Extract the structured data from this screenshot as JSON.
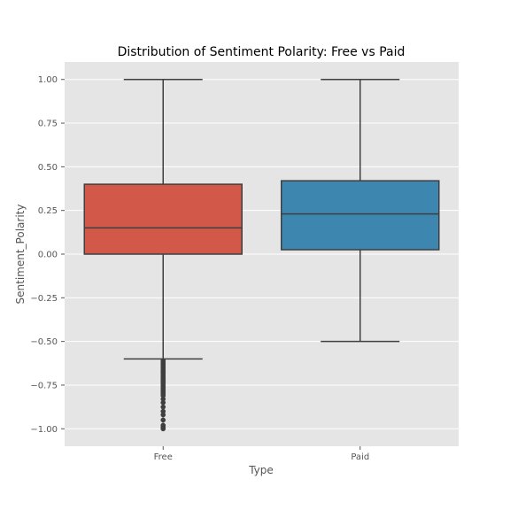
{
  "chart_data": {
    "type": "box",
    "title": "Distribution of Sentiment Polarity: Free vs Paid",
    "xlabel": "Type",
    "ylabel": "Sentiment_Polarity",
    "ylim": [
      -1.1,
      1.1
    ],
    "yticks": [
      1.0,
      0.75,
      0.5,
      0.25,
      0.0,
      -0.25,
      -0.5,
      -0.75,
      -1.0
    ],
    "ytick_labels": [
      "1.00",
      "0.75",
      "0.50",
      "0.25",
      "0.00",
      "−0.25",
      "−0.50",
      "−0.75",
      "−1.00"
    ],
    "categories": [
      "Free",
      "Paid"
    ],
    "grid": true,
    "boxes": [
      {
        "category": "Free",
        "color": "#D2584A",
        "whisker_low": -0.6,
        "q1": 0.0,
        "median": 0.15,
        "q3": 0.4,
        "whisker_high": 1.0,
        "outliers": [
          -0.61,
          -0.62,
          -0.625,
          -0.63,
          -0.64,
          -0.65,
          -0.66,
          -0.67,
          -0.675,
          -0.68,
          -0.69,
          -0.7,
          -0.71,
          -0.72,
          -0.725,
          -0.73,
          -0.74,
          -0.75,
          -0.76,
          -0.77,
          -0.78,
          -0.79,
          -0.8,
          -0.81,
          -0.83,
          -0.85,
          -0.875,
          -0.9,
          -0.92,
          -0.95,
          -0.98,
          -0.99,
          -1.0
        ]
      },
      {
        "category": "Paid",
        "color": "#3C86B0",
        "whisker_low": -0.5,
        "q1": 0.025,
        "median": 0.23,
        "q3": 0.42,
        "whisker_high": 1.0,
        "outliers": []
      }
    ]
  }
}
